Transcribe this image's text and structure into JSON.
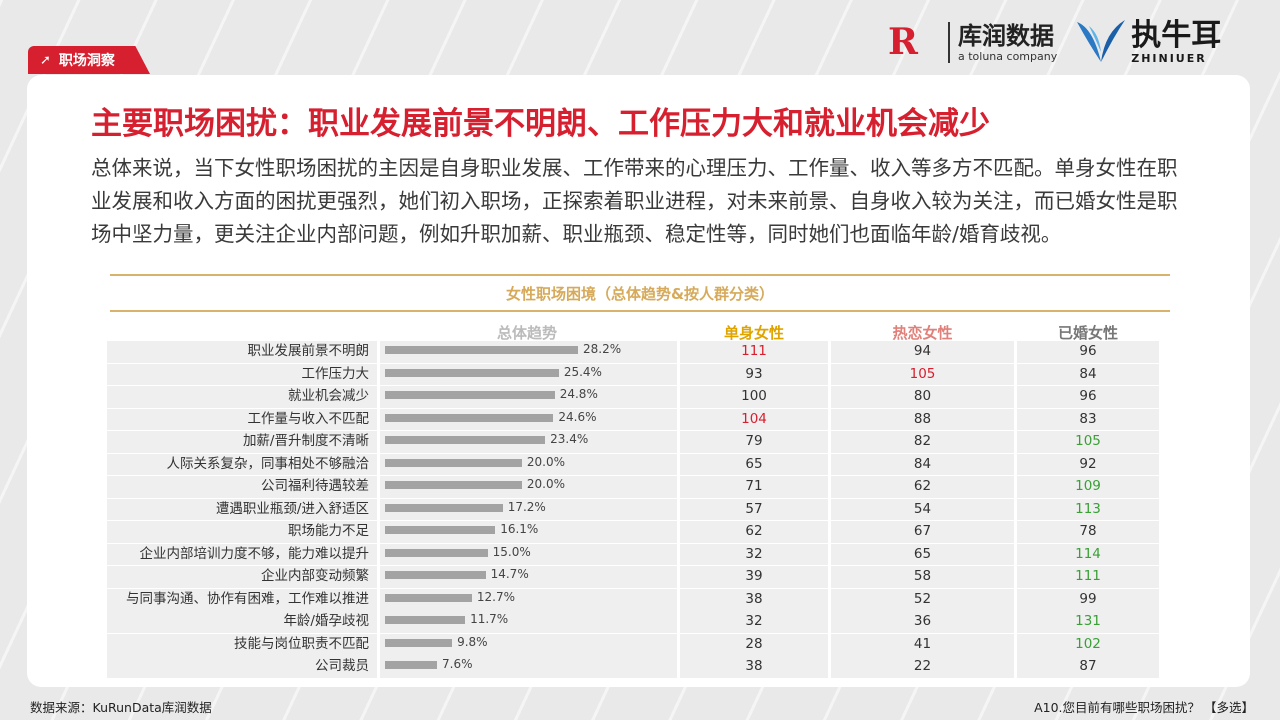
{
  "tag": {
    "label": "职场洞察",
    "icon": "arrow-up-right-icon"
  },
  "logos": {
    "kurun": {
      "mark": "R",
      "name_cn": "库润数据",
      "name_en": "a toluna company"
    },
    "zhiniuer": {
      "name_cn": "执牛耳",
      "name_en": "ZHINIUER"
    }
  },
  "title": "主要职场困扰：职业发展前景不明朗、工作压力大和就业机会减少",
  "body": "总体来说，当下女性职场困扰的主因是自身职业发展、工作带来的心理压力、工作量、收入等多方不匹配。单身女性在职业发展和收入方面的困扰更强烈，她们初入职场，正探索着职业进程，对未来前景、自身收入较为关注，而已婚女性是职场中坚力量，更关注企业内部问题，例如升职加薪、职业瓶颈、稳定性等，同时她们也面临年龄/婚育歧视。",
  "colors": {
    "accent": "#d6202f",
    "gold": "#d6aa5a",
    "single": "#e0a400",
    "love": "#e0807a",
    "married": "#777777",
    "high_red": "#d6202f",
    "high_green": "#3aa035",
    "bar": "#a3a3a3"
  },
  "chart_data": {
    "type": "table",
    "title": "女性职场困境（总体趋势&按人群分类）",
    "columns": [
      "总体趋势",
      "单身女性",
      "热恋女性",
      "已婚女性"
    ],
    "categories": [
      "职业发展前景不明朗",
      "工作压力大",
      "就业机会减少",
      "工作量与收入不匹配",
      "加薪/晋升制度不清晰",
      "人际关系复杂，同事相处不够融洽",
      "公司福利待遇较差",
      "遭遇职业瓶颈/进入舒适区",
      "职场能力不足",
      "企业内部培训力度不够，能力难以提升",
      "企业内部变动频繁",
      "与同事沟通、协作有困难，工作难以推进",
      "年龄/婚孕歧视",
      "技能与岗位职责不匹配",
      "公司裁员"
    ],
    "overall": [
      28.2,
      25.4,
      24.8,
      24.6,
      23.4,
      20.0,
      20.0,
      17.2,
      16.1,
      15.0,
      14.7,
      12.7,
      11.7,
      9.8,
      7.6
    ],
    "overall_labels": [
      "28.2%",
      "25.4%",
      "24.8%",
      "24.6%",
      "23.4%",
      "20.0%",
      "20.0%",
      "17.2%",
      "16.1%",
      "15.0%",
      "14.7%",
      "12.7%",
      "11.7%",
      "9.8%",
      "7.6%"
    ],
    "series": [
      {
        "name": "单身女性",
        "values": [
          111,
          93,
          100,
          104,
          79,
          65,
          71,
          57,
          62,
          32,
          39,
          38,
          32,
          28,
          38
        ],
        "highlight": [
          "red",
          "",
          "",
          "red",
          "",
          "",
          "",
          "",
          "",
          "",
          "",
          "",
          "",
          "",
          ""
        ]
      },
      {
        "name": "热恋女性",
        "values": [
          94,
          105,
          80,
          88,
          82,
          84,
          62,
          54,
          67,
          65,
          58,
          52,
          36,
          41,
          22
        ],
        "highlight": [
          "",
          "red",
          "",
          "",
          "",
          "",
          "",
          "",
          "",
          "",
          "",
          "",
          "",
          "",
          ""
        ]
      },
      {
        "name": "已婚女性",
        "values": [
          96,
          84,
          96,
          83,
          105,
          92,
          109,
          113,
          78,
          114,
          111,
          99,
          131,
          102,
          87
        ],
        "highlight": [
          "",
          "",
          "",
          "",
          "green",
          "",
          "green",
          "green",
          "",
          "green",
          "green",
          "",
          "green",
          "green",
          ""
        ]
      }
    ]
  },
  "footer": {
    "source": "数据来源：KuRunData库润数据",
    "question": "A10.您目前有哪些职场困扰？ 【多选】"
  }
}
